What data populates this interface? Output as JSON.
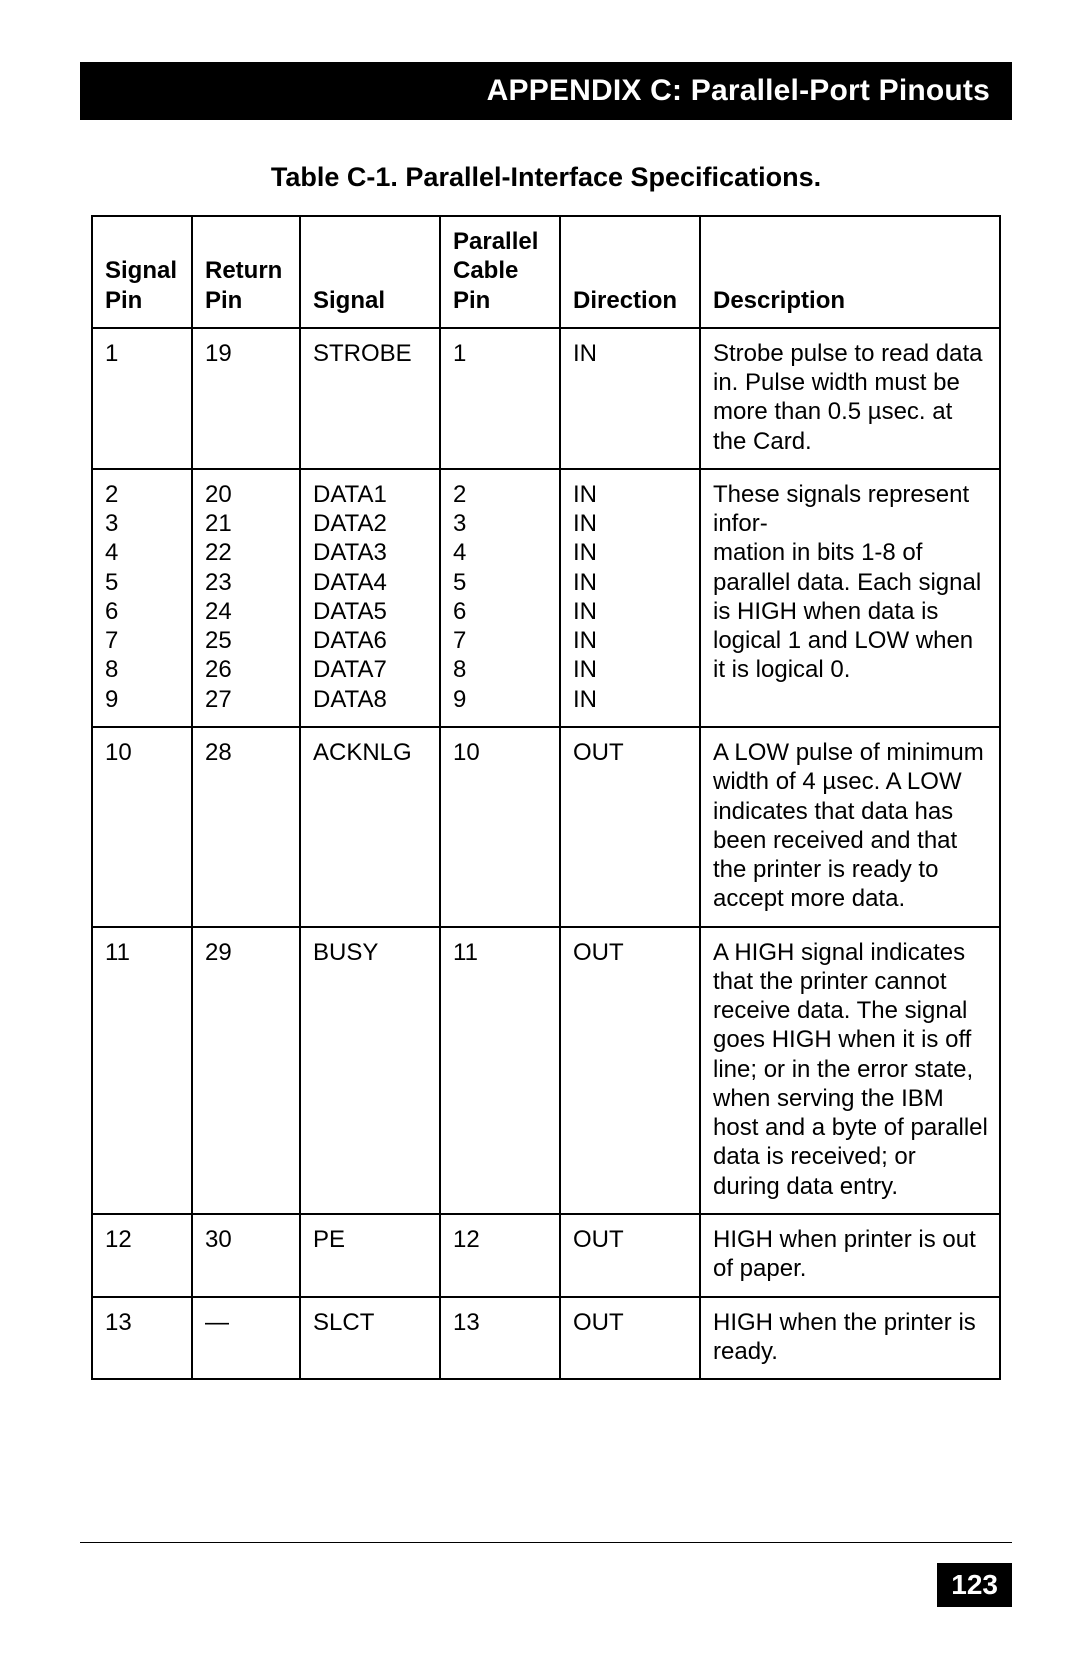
{
  "header": {
    "title": "APPENDIX C: Parallel-Port Pinouts"
  },
  "table": {
    "title": "Table C-1. Parallel-Interface Specifications.",
    "columns": [
      "Signal\nPin",
      "Return\nPin",
      "Signal",
      "Parallel\nCable\nPin",
      "Direction",
      "Description"
    ],
    "rows": [
      {
        "signal_pin": "1",
        "return_pin": "19",
        "signal": "STROBE",
        "cable_pin": "1",
        "direction": "IN",
        "description": "Strobe pulse to read data in. Pulse width must be more than 0.5 µsec. at the Card."
      },
      {
        "signal_pin": "2\n3\n4\n5\n6\n7\n8\n9",
        "return_pin": "20\n21\n22\n23\n24\n25\n26\n27",
        "signal": "DATA1\nDATA2\nDATA3\nDATA4\nDATA5\nDATA6\nDATA7\nDATA8",
        "cable_pin": "2\n3\n4\n5\n6\n7\n8\n9",
        "direction": "IN\nIN\nIN\nIN\nIN\nIN\nIN\nIN",
        "description": "These signals represent infor-\nmation in bits 1-8 of parallel data. Each signal is HIGH when data is logical 1 and LOW when it is logical 0."
      },
      {
        "signal_pin": "10",
        "return_pin": "28",
        "signal": "ACKNLG",
        "cable_pin": "10",
        "direction": "OUT",
        "description": "A LOW pulse of minimum width of 4 µsec. A LOW indicates that data has been received and that the printer is ready to accept more data."
      },
      {
        "signal_pin": "11",
        "return_pin": "29",
        "signal": "BUSY",
        "cable_pin": "11",
        "direction": "OUT",
        "description": "A HIGH signal indicates that the printer cannot receive data. The signal goes HIGH when it is off line; or in the error state, when serving the IBM host and a byte of parallel data is received; or during data entry."
      },
      {
        "signal_pin": "12",
        "return_pin": "30",
        "signal": "PE",
        "cable_pin": "12",
        "direction": "OUT",
        "description": "HIGH when printer is out of paper."
      },
      {
        "signal_pin": "13",
        "return_pin": "—",
        "signal": "SLCT",
        "cable_pin": "13",
        "direction": "OUT",
        "description": "HIGH when the printer is ready."
      }
    ]
  },
  "footer": {
    "page_number": "123"
  }
}
